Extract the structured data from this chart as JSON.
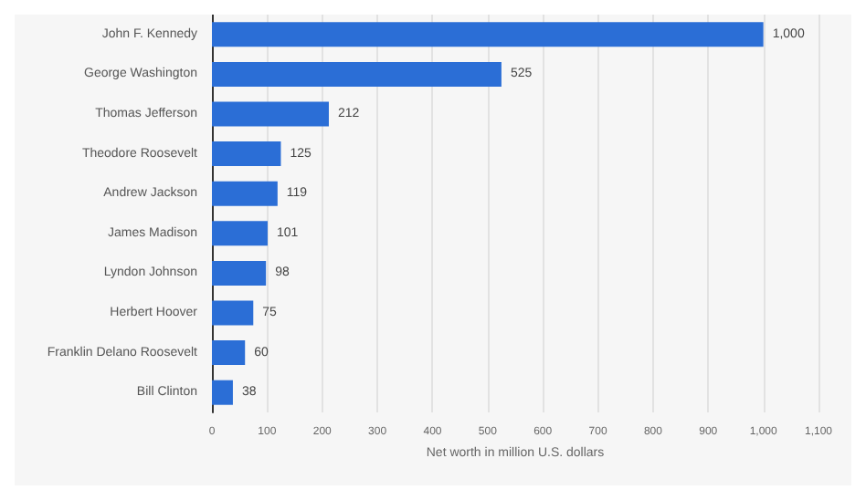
{
  "chart_data": {
    "type": "bar",
    "orientation": "horizontal",
    "xlabel": "Net worth in million U.S. dollars",
    "categories": [
      "John F. Kennedy",
      "George Washington",
      "Thomas Jefferson",
      "Theodore Roosevelt",
      "Andrew Jackson",
      "James Madison",
      "Lyndon Johnson",
      "Herbert Hoover",
      "Franklin Delano Roosevelt",
      "Bill Clinton"
    ],
    "values": [
      1000,
      525,
      212,
      125,
      119,
      101,
      98,
      75,
      60,
      38
    ],
    "value_labels": [
      "1,000",
      "525",
      "212",
      "125",
      "119",
      "101",
      "98",
      "75",
      "60",
      "38"
    ],
    "color": "#2b6ed6",
    "xlim": [
      0,
      1100
    ],
    "xticks": [
      0,
      100,
      200,
      300,
      400,
      500,
      600,
      700,
      800,
      900,
      {
        "value": 1000,
        "label": "1,000"
      },
      {
        "value": 1100,
        "label": "1,100"
      }
    ],
    "grid": "x"
  }
}
